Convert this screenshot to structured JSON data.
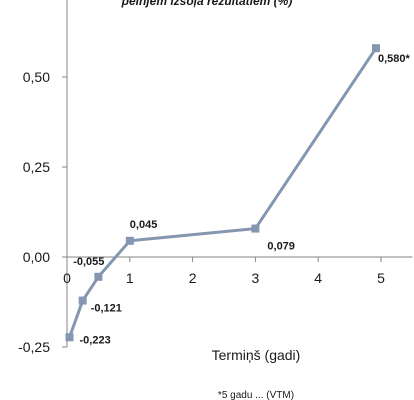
{
  "chart_data": {
    "type": "line",
    "title": "peĺnjem izsoļa rezultātiem  (%)",
    "xlabel": "Termiņš (gadi)",
    "ylabel": "",
    "footnote": "*5 gadu ... (VTM)",
    "xlim": [
      0,
      5.5
    ],
    "ylim": [
      -0.25,
      0.75
    ],
    "x_ticks": [
      "0",
      "1",
      "2",
      "3",
      "4",
      "5"
    ],
    "y_ticks": [
      "-0,25",
      "0,00",
      "0,25",
      "0,50"
    ],
    "series": [
      {
        "x": [
          0.04,
          0.25,
          0.5,
          1.0,
          3.0,
          4.92
        ],
        "y": [
          -0.223,
          -0.121,
          -0.055,
          0.045,
          0.079,
          0.58
        ],
        "labels": [
          "-0,223",
          "-0,121",
          "-0,055",
          "0,045",
          "0,079",
          "0,580*"
        ]
      }
    ],
    "line_color": "#8496B0",
    "grid": false,
    "legend": "none"
  }
}
